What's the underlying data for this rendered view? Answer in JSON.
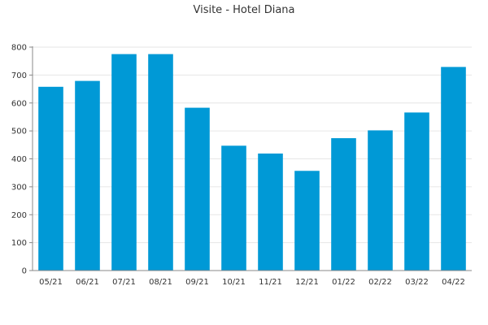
{
  "chart_data": {
    "type": "bar",
    "title": "Visite - Hotel Diana",
    "xlabel": "",
    "ylabel": "",
    "categories": [
      "05/21",
      "06/21",
      "07/21",
      "08/21",
      "09/21",
      "10/21",
      "11/21",
      "12/21",
      "01/22",
      "02/22",
      "03/22",
      "04/22"
    ],
    "values": [
      658,
      679,
      775,
      775,
      583,
      447,
      419,
      357,
      474,
      502,
      566,
      729
    ],
    "ylim": [
      0,
      800
    ],
    "yticks": [
      0,
      100,
      200,
      300,
      400,
      500,
      600,
      700,
      800
    ],
    "grid": true,
    "legend": "none",
    "colors": {
      "bar": "#0099d6",
      "grid": "#e6e6e6",
      "axis": "#888888"
    }
  }
}
